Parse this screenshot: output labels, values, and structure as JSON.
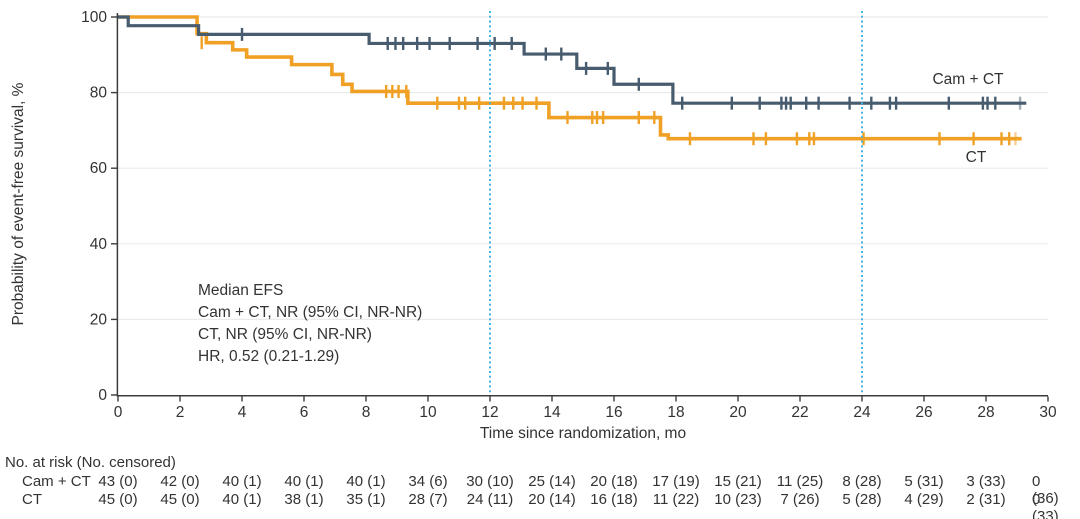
{
  "chart_data": {
    "type": "line",
    "subtype": "kaplan-meier-step",
    "title": "",
    "xlabel": "Time since randomization, mo",
    "ylabel": "Probability of event-free survival, %",
    "xlim": [
      0,
      30
    ],
    "ylim": [
      0,
      100
    ],
    "xticks": [
      0,
      2,
      4,
      6,
      8,
      10,
      12,
      14,
      16,
      18,
      20,
      22,
      24,
      26,
      28,
      30
    ],
    "yticks": [
      0,
      20,
      40,
      60,
      80,
      100
    ],
    "grid": "horizontal",
    "reference_lines_x": [
      12,
      24
    ],
    "colors": {
      "cam_ct": "#475C6E",
      "ct": "#F0A125",
      "reference": "#41B6E6",
      "grid": "#EBEBEB",
      "axis": "#3C3C3C",
      "text": "#333333"
    },
    "series": [
      {
        "name": "Cam + CT",
        "color": "#475C6E",
        "end": 29.3,
        "steps": [
          [
            0,
            100
          ],
          [
            0.33,
            97.7
          ],
          [
            2.6,
            95.4
          ],
          [
            8.1,
            93.0
          ],
          [
            13.1,
            90.2
          ],
          [
            14.8,
            86.4
          ],
          [
            16.0,
            82.2
          ],
          [
            17.9,
            77.2
          ]
        ],
        "censors": [
          [
            4.0,
            95.4
          ],
          [
            8.7,
            93.0
          ],
          [
            8.95,
            93.0
          ],
          [
            9.2,
            93.0
          ],
          [
            9.65,
            93.0
          ],
          [
            10.05,
            93.0
          ],
          [
            10.7,
            93.0
          ],
          [
            11.6,
            93.0
          ],
          [
            12.15,
            93.0
          ],
          [
            12.7,
            93.0
          ],
          [
            13.8,
            90.2
          ],
          [
            14.3,
            90.2
          ],
          [
            15.1,
            86.4
          ],
          [
            15.8,
            86.4
          ],
          [
            16.8,
            82.2
          ],
          [
            18.2,
            77.2
          ],
          [
            19.8,
            77.2
          ],
          [
            20.7,
            77.2
          ],
          [
            21.4,
            77.2
          ],
          [
            21.55,
            77.2
          ],
          [
            21.7,
            77.2
          ],
          [
            22.2,
            77.2
          ],
          [
            22.6,
            77.2
          ],
          [
            23.6,
            77.2
          ],
          [
            24.3,
            77.2
          ],
          [
            24.9,
            77.2
          ],
          [
            25.1,
            77.2
          ],
          [
            26.8,
            77.2
          ],
          [
            27.9,
            77.2
          ],
          [
            28.05,
            77.2
          ],
          [
            28.3,
            77.2
          ],
          [
            29.1,
            77.2,
            1
          ]
        ]
      },
      {
        "name": "CT",
        "color": "#F0A125",
        "end": 29.15,
        "steps": [
          [
            0,
            100
          ],
          [
            2.55,
            95.6
          ],
          [
            2.85,
            93.2
          ],
          [
            3.7,
            91.3
          ],
          [
            4.15,
            89.4
          ],
          [
            5.6,
            87.4
          ],
          [
            6.9,
            84.8
          ],
          [
            7.25,
            82.2
          ],
          [
            7.55,
            80.3
          ],
          [
            9.35,
            77.2
          ],
          [
            13.9,
            73.4
          ],
          [
            17.5,
            68.8
          ],
          [
            17.75,
            67.8
          ]
        ],
        "censors": [
          [
            2.7,
            93.2
          ],
          [
            8.65,
            80.3
          ],
          [
            8.85,
            80.3
          ],
          [
            9.05,
            80.3
          ],
          [
            9.3,
            80.3
          ],
          [
            10.3,
            77.2
          ],
          [
            11.0,
            77.2
          ],
          [
            11.2,
            77.2
          ],
          [
            11.65,
            77.2
          ],
          [
            12.45,
            77.2
          ],
          [
            12.75,
            77.2
          ],
          [
            13.05,
            77.2
          ],
          [
            13.5,
            77.2
          ],
          [
            14.5,
            73.4
          ],
          [
            15.3,
            73.4
          ],
          [
            15.45,
            73.4
          ],
          [
            15.65,
            73.4
          ],
          [
            16.8,
            73.4
          ],
          [
            17.3,
            73.4
          ],
          [
            18.45,
            67.8
          ],
          [
            20.5,
            67.8
          ],
          [
            20.9,
            67.8
          ],
          [
            21.9,
            67.8
          ],
          [
            22.3,
            67.8
          ],
          [
            22.45,
            67.8
          ],
          [
            24.05,
            67.8
          ],
          [
            26.5,
            67.8
          ],
          [
            27.6,
            67.8
          ],
          [
            28.5,
            67.8
          ],
          [
            28.75,
            67.8
          ],
          [
            28.95,
            67.8,
            1
          ]
        ]
      }
    ],
    "annotation": [
      "Median EFS",
      "Cam + CT, NR (95% CI, NR-NR)",
      "CT, NR (95% CI, NR-NR)",
      "HR, 0.52 (0.21-1.29)"
    ],
    "risk_table": {
      "header": "No. at risk (No. censored)",
      "times": [
        0,
        2,
        4,
        6,
        8,
        10,
        12,
        14,
        16,
        18,
        20,
        22,
        24,
        26,
        28,
        30
      ],
      "rows": [
        {
          "label": "Cam + CT",
          "values": [
            "43 (0)",
            "42 (0)",
            "40 (1)",
            "40 (1)",
            "40 (1)",
            "34 (6)",
            "30 (10)",
            "25 (14)",
            "20 (18)",
            "17 (19)",
            "15 (21)",
            "11 (25)",
            "8 (28)",
            "5 (31)",
            "3 (33)",
            "0 (36)"
          ]
        },
        {
          "label": "CT",
          "values": [
            "45 (0)",
            "45 (0)",
            "40 (1)",
            "38 (1)",
            "35 (1)",
            "28 (7)",
            "24 (11)",
            "20 (14)",
            "16 (18)",
            "11 (22)",
            "10 (23)",
            "7 (26)",
            "5 (28)",
            "4 (29)",
            "2 (31)",
            "0 (33)"
          ]
        }
      ]
    }
  }
}
